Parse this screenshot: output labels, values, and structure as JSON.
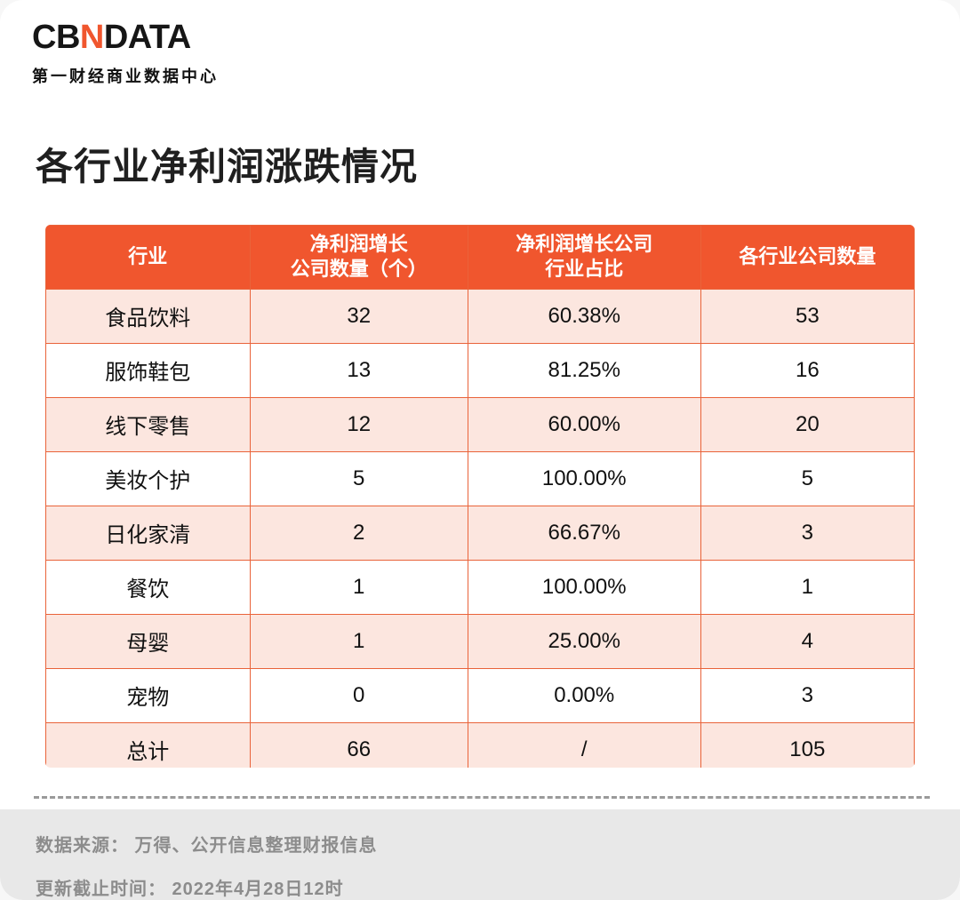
{
  "logo": {
    "brand_cb": "CB",
    "brand_n": "N",
    "brand_data": "DATA",
    "subtitle": "第一财经商业数据中心"
  },
  "page_title": "各行业净利润涨跌情况",
  "chart_data": {
    "type": "table",
    "title": "各行业净利润涨跌情况",
    "columns": [
      "行业",
      "净利润增长公司数量（个）",
      "净利润增长公司行业占比",
      "各行业公司数量"
    ],
    "headers_display": [
      "行业",
      "净利润增长\n公司数量（个）",
      "净利润增长公司\n行业占比",
      "各行业公司数量"
    ],
    "rows": [
      [
        "食品饮料",
        "32",
        "60.38%",
        "53"
      ],
      [
        "服饰鞋包",
        "13",
        "81.25%",
        "16"
      ],
      [
        "线下零售",
        "12",
        "60.00%",
        "20"
      ],
      [
        "美妆个护",
        "5",
        "100.00%",
        "5"
      ],
      [
        "日化家清",
        "2",
        "66.67%",
        "3"
      ],
      [
        "餐饮",
        "1",
        "100.00%",
        "1"
      ],
      [
        "母婴",
        "1",
        "25.00%",
        "4"
      ],
      [
        "宠物",
        "0",
        "0.00%",
        "3"
      ],
      [
        "总计",
        "66",
        "/",
        "105"
      ]
    ]
  },
  "footer": {
    "source": "数据来源： 万得、公开信息整理财报信息",
    "updated": "更新截止时间： 2022年4月28日12时"
  },
  "colors": {
    "accent": "#f0562e",
    "header_bg": "#f0562e",
    "row_pink": "#fce6df",
    "border": "#e9633a",
    "footer_bg": "#e8e8e8",
    "footer_text": "#8c8c8c",
    "title_color": "#1f1f1f"
  }
}
